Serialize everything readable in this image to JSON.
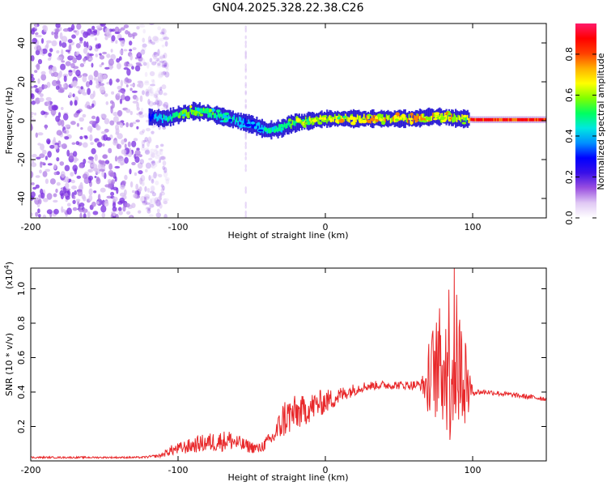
{
  "title": "GN04.2025.328.22.38.C26",
  "chart_data": [
    {
      "type": "heatmap",
      "name": "spectrogram",
      "xlabel": "Height of straight line (km)",
      "ylabel": "Frequency (Hz)",
      "xlim": [
        -200,
        150
      ],
      "ylim": [
        -50,
        50
      ],
      "xticks": [
        -200,
        -100,
        0,
        100
      ],
      "yticks": [
        -40,
        -20,
        0,
        20,
        40
      ],
      "noise_region_x": [
        -200,
        -115
      ],
      "signal_trace": {
        "x": [
          -120,
          -110,
          -100,
          -90,
          -80,
          -70,
          -60,
          -50,
          -40,
          -30,
          -25,
          -20,
          -10,
          0,
          10,
          20,
          40,
          60,
          70,
          80,
          90,
          95,
          100,
          120,
          150
        ],
        "freq": [
          2,
          1,
          3,
          5,
          4,
          2,
          0,
          -2,
          -5,
          -4,
          -2,
          -1,
          0,
          1,
          1,
          1,
          1,
          1,
          2,
          2,
          1,
          1,
          0.5,
          0.5,
          0.5
        ],
        "amp": [
          0.35,
          0.45,
          0.55,
          0.6,
          0.55,
          0.5,
          0.45,
          0.4,
          0.45,
          0.5,
          0.55,
          0.6,
          0.65,
          0.7,
          0.7,
          0.7,
          0.72,
          0.75,
          0.75,
          0.7,
          0.7,
          0.6,
          0.95,
          0.95,
          0.95
        ]
      },
      "colorbar": {
        "label": "Normalized spectral amplitude",
        "ticks": [
          0.0,
          0.2,
          0.4,
          0.6,
          0.8
        ],
        "range": [
          0,
          0.95
        ],
        "colors": [
          "#ffffff",
          "#c49be0",
          "#6a0dd6",
          "#0000ff",
          "#00c8ff",
          "#00ff80",
          "#80ff00",
          "#ffff00",
          "#ff8000",
          "#ff0000",
          "#ff1493"
        ]
      }
    },
    {
      "type": "line",
      "name": "snr",
      "xlabel": "Height of straight line (km)",
      "ylabel": "SNR (10 * v/v)",
      "scale_label": "(x10",
      "scale_exponent": "4",
      "scale_suffix": ")",
      "xlim": [
        -200,
        150
      ],
      "ylim": [
        0,
        1.12
      ],
      "xticks": [
        -200,
        -100,
        0,
        100
      ],
      "yticks": [
        0.2,
        0.4,
        0.6,
        0.8,
        1.0
      ],
      "color": "#e8282a",
      "x": [
        -200,
        -150,
        -125,
        -112,
        -105,
        -95,
        -85,
        -75,
        -65,
        -55,
        -45,
        -35,
        -28,
        -22,
        -15,
        -5,
        5,
        15,
        25,
        35,
        45,
        55,
        65,
        72,
        78,
        83,
        86,
        88,
        91,
        95,
        100,
        110,
        130,
        150
      ],
      "y": [
        0.02,
        0.02,
        0.02,
        0.03,
        0.06,
        0.08,
        0.1,
        0.11,
        0.12,
        0.09,
        0.07,
        0.14,
        0.25,
        0.27,
        0.29,
        0.33,
        0.36,
        0.4,
        0.43,
        0.44,
        0.44,
        0.44,
        0.44,
        0.44,
        0.45,
        0.45,
        0.45,
        0.45,
        0.44,
        0.42,
        0.4,
        0.4,
        0.38,
        0.36
      ],
      "amp": [
        0.005,
        0.005,
        0.005,
        0.01,
        0.03,
        0.04,
        0.05,
        0.06,
        0.06,
        0.04,
        0.03,
        0.05,
        0.12,
        0.11,
        0.09,
        0.08,
        0.06,
        0.04,
        0.03,
        0.025,
        0.025,
        0.025,
        0.03,
        0.25,
        0.35,
        0.45,
        0.6,
        0.45,
        0.35,
        0.3,
        0.02,
        0.015,
        0.015,
        0.015
      ],
      "peak": {
        "x": 87.5,
        "y": 1.12
      }
    }
  ]
}
